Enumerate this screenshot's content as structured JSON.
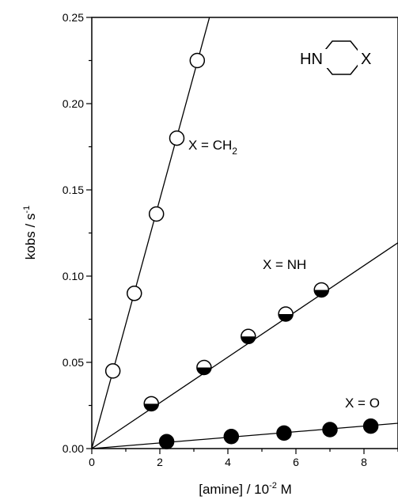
{
  "chart_data": {
    "type": "scatter",
    "title": "",
    "xlabel": "[amine] / 10",
    "xlabel_sup": "-2",
    "xlabel_tail": " M",
    "ylabel": "kobs / s",
    "ylabel_sup": "-1",
    "xlim": [
      0,
      9
    ],
    "ylim": [
      0,
      0.25
    ],
    "xticks": [
      "0",
      "2",
      "4",
      "6",
      "8"
    ],
    "yticks": [
      "0.00",
      "0.05",
      "0.10",
      "0.15",
      "0.20",
      "0.25"
    ],
    "grid": false,
    "series": [
      {
        "name": "X = CH",
        "name_sub": "2",
        "marker": "open-circle",
        "x": [
          0.62,
          1.25,
          1.9,
          2.5,
          3.1
        ],
        "y": [
          0.045,
          0.09,
          0.136,
          0.18,
          0.225
        ],
        "fit": {
          "x": [
            0,
            3.5
          ],
          "y": [
            0,
            0.253
          ]
        }
      },
      {
        "name": "X = NH",
        "marker": "half-filled-circle",
        "x": [
          1.75,
          3.3,
          4.6,
          5.7,
          6.75
        ],
        "y": [
          0.026,
          0.047,
          0.065,
          0.078,
          0.092
        ],
        "fit": {
          "x": [
            0,
            9.2
          ],
          "y": [
            0,
            0.122
          ]
        }
      },
      {
        "name": "X = O",
        "marker": "filled-circle",
        "x": [
          2.2,
          4.1,
          5.65,
          7.0,
          8.2
        ],
        "y": [
          0.004,
          0.007,
          0.009,
          0.011,
          0.013
        ],
        "fit": {
          "x": [
            0,
            9.2
          ],
          "y": [
            0,
            0.015
          ]
        }
      }
    ],
    "inset_structure": {
      "left_label": "HN",
      "right_label": "X"
    }
  }
}
